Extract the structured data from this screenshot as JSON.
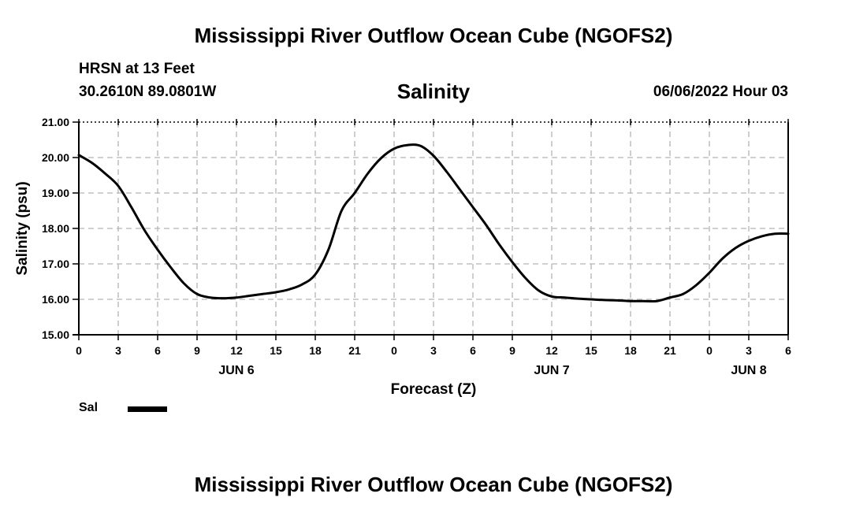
{
  "page": {
    "main_title": "Mississippi River Outflow Ocean Cube (NGOFS2)",
    "footer_title": "Mississippi River Outflow Ocean Cube (NGOFS2)",
    "station": "HRSN at 13 Feet",
    "coordinates": "30.2610N  89.0801W",
    "variable_title": "Salinity",
    "datetime": "06/06/2022 Hour 03"
  },
  "chart_data": {
    "type": "line",
    "title": "Salinity",
    "xlabel": "Forecast (Z)",
    "ylabel": "Salinity (psu)",
    "xlim": [
      0,
      54
    ],
    "ylim": [
      15.0,
      21.0
    ],
    "y_ticks": [
      "15.00",
      "16.00",
      "17.00",
      "18.00",
      "19.00",
      "20.00",
      "21.00"
    ],
    "x_tick_labels": [
      "0",
      "3",
      "6",
      "9",
      "12",
      "15",
      "18",
      "21",
      "0",
      "3",
      "6",
      "9",
      "12",
      "15",
      "18",
      "21",
      "0",
      "3",
      "6"
    ],
    "day_labels": [
      {
        "hour": 12,
        "label": "JUN 6"
      },
      {
        "hour": 36,
        "label": "JUN 7"
      },
      {
        "hour": 51,
        "label": "JUN 8"
      }
    ],
    "grid": true,
    "legend": [
      {
        "name": "Sal",
        "color": "#000000"
      }
    ],
    "series": [
      {
        "name": "Sal",
        "color": "#000000",
        "x": [
          0,
          1,
          2,
          3,
          4,
          5,
          6,
          7,
          8,
          9,
          10,
          11,
          12,
          13,
          14,
          15,
          16,
          17,
          18,
          19,
          20,
          21,
          22,
          23,
          24,
          25,
          26,
          27,
          28,
          29,
          30,
          31,
          32,
          33,
          34,
          35,
          36,
          37,
          38,
          39,
          40,
          41,
          42,
          43,
          44,
          45,
          46,
          47,
          48,
          49,
          50,
          51,
          52,
          53,
          54
        ],
        "values": [
          20.07,
          19.85,
          19.55,
          19.2,
          18.6,
          17.95,
          17.4,
          16.9,
          16.45,
          16.15,
          16.05,
          16.03,
          16.05,
          16.1,
          16.15,
          16.2,
          16.28,
          16.42,
          16.7,
          17.4,
          18.5,
          19.0,
          19.55,
          19.98,
          20.25,
          20.35,
          20.33,
          20.05,
          19.6,
          19.1,
          18.6,
          18.1,
          17.55,
          17.05,
          16.6,
          16.25,
          16.08,
          16.05,
          16.02,
          16.0,
          15.98,
          15.97,
          15.95,
          15.95,
          15.95,
          16.05,
          16.15,
          16.4,
          16.75,
          17.15,
          17.45,
          17.65,
          17.78,
          17.85,
          17.85
        ]
      }
    ]
  }
}
